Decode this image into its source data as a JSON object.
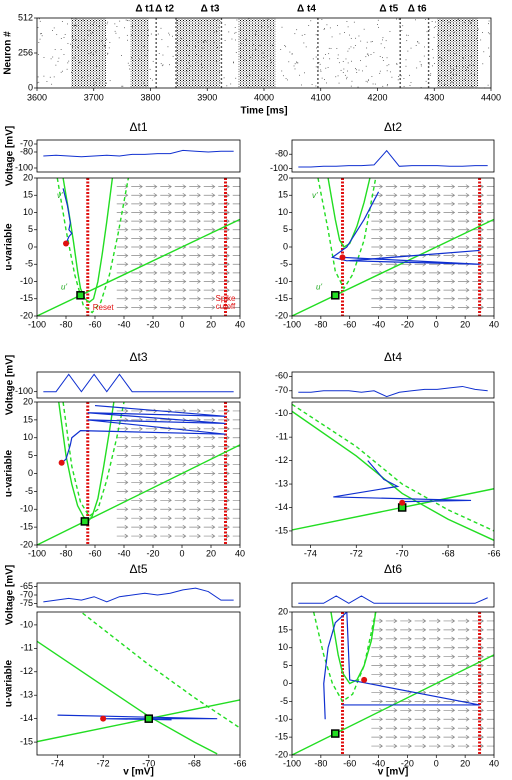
{
  "chart_data": [
    {
      "type": "raster",
      "xlabel": "Time [ms]",
      "ylabel": "Neuron #",
      "xlim": [
        3600,
        4400
      ],
      "xticks": [
        3600,
        3700,
        3800,
        3900,
        4000,
        4100,
        4200,
        4300,
        4400
      ],
      "ylim": [
        0,
        512
      ],
      "yticks": [
        0,
        256,
        512
      ],
      "bursts": [
        [
          3660,
          3722
        ],
        [
          3765,
          3797
        ],
        [
          3845,
          3922
        ],
        [
          3955,
          4020
        ],
        [
          4305,
          4378
        ]
      ],
      "events": [
        3810,
        3845,
        3925,
        4095,
        4240,
        4290
      ],
      "event_labels": [
        "Δ t1",
        "Δ t2",
        "Δ t3",
        "Δ t4",
        "Δ t5",
        "Δ t6"
      ]
    },
    {
      "type": "phase",
      "title": "Δt1",
      "voltage": {
        "label": "Voltage [mV]",
        "ylim": [
          -105,
          -65
        ],
        "yticks": [
          -100,
          -80,
          -70
        ],
        "values": [
          -85,
          -84,
          -85,
          -86,
          -85,
          -84,
          -85,
          -83,
          -83,
          -82,
          -82,
          -78,
          -79,
          -80,
          -79,
          -79
        ]
      },
      "ylabel": "u-variable",
      "xlim": [
        -100,
        40
      ],
      "xticks": [
        -100,
        -80,
        -60,
        -40,
        -20,
        0,
        20,
        40
      ],
      "ylim": [
        -20,
        20
      ],
      "yticks": [
        -20,
        -15,
        -10,
        -5,
        0,
        5,
        10,
        15,
        20
      ],
      "reset": -65,
      "cutoff": 30,
      "reset_label": "Reset",
      "cutoff_label": [
        "Spike",
        "cutoff"
      ],
      "nullcline_labels": [
        "v'",
        "u'"
      ],
      "curves": [
        {
          "color": "#22dd22",
          "dashed": false,
          "x": [
            -82,
            -78,
            -75,
            -72,
            -70,
            -67,
            -64,
            -61,
            -58,
            -55,
            -52,
            -48
          ],
          "y": [
            20,
            10,
            2,
            -7,
            -12,
            -15,
            -16,
            -15,
            -10,
            -2,
            7,
            20
          ]
        },
        {
          "color": "#22dd22",
          "dashed": true,
          "x": [
            -86,
            -80,
            -74,
            -68,
            -62,
            -56,
            -50,
            -44,
            -37
          ],
          "y": [
            20,
            5,
            -8,
            -17,
            -19,
            -16,
            -8,
            4,
            20
          ]
        },
        {
          "color": "#22dd22",
          "dashed": false,
          "x": [
            -100,
            40
          ],
          "y": [
            -20,
            8
          ]
        },
        {
          "color": "#1030d0",
          "dashed": false,
          "x": [
            -82,
            -79,
            -77,
            -78,
            -76,
            -78,
            -80
          ],
          "y": [
            17,
            12,
            7,
            5,
            4,
            3,
            1
          ]
        }
      ],
      "state": [
        -80,
        1
      ],
      "fixed_point": [
        -70,
        -14
      ]
    },
    {
      "type": "phase",
      "title": "Δt2",
      "voltage": {
        "ylim": [
          -105,
          -60
        ],
        "yticks": [
          -100,
          -80
        ],
        "values": [
          -98,
          -98,
          -97,
          -97,
          -96,
          -96,
          -95,
          -75,
          -97,
          -96,
          -96,
          -96,
          -97,
          -97,
          -96,
          -96
        ]
      },
      "xlim": [
        -100,
        40
      ],
      "xticks": [
        -100,
        -80,
        -60,
        -40,
        -20,
        0,
        20,
        40
      ],
      "ylim": [
        -20,
        20
      ],
      "yticks": [
        -20,
        -15,
        -10,
        -5,
        0,
        5,
        10,
        15,
        20
      ],
      "reset": -65,
      "cutoff": 30,
      "nullcline_labels": [
        "v'",
        "u'"
      ],
      "curves": [
        {
          "color": "#22dd22",
          "dashed": false,
          "x": [
            -75,
            -70,
            -67,
            -64,
            -60,
            -55,
            -50,
            -46
          ],
          "y": [
            20,
            8,
            2,
            0,
            1,
            6,
            13,
            20
          ]
        },
        {
          "color": "#22dd22",
          "dashed": true,
          "x": [
            -82,
            -75,
            -70,
            -64,
            -58,
            -50,
            -42
          ],
          "y": [
            20,
            5,
            -7,
            -12,
            -8,
            2,
            20
          ]
        },
        {
          "color": "#22dd22",
          "dashed": false,
          "x": [
            -100,
            40
          ],
          "y": [
            -20,
            8
          ]
        },
        {
          "color": "#1030d0",
          "dashed": false,
          "x": [
            -40,
            -50,
            -62,
            -72,
            -62,
            30,
            -60,
            30,
            -65
          ],
          "y": [
            16,
            8,
            0,
            -3,
            -4,
            -1,
            -4,
            -5,
            -3
          ]
        }
      ],
      "state": [
        -65,
        -3
      ],
      "fixed_point": [
        -70,
        -14
      ]
    },
    {
      "type": "phase",
      "title": "Δt3",
      "voltage": {
        "label": "Voltage [mV]",
        "ylim": [
          -108,
          -75
        ],
        "yticks": [
          -100
        ],
        "values": [
          -100,
          -100,
          -78,
          -100,
          -78,
          -100,
          -78,
          -100,
          -100,
          -100,
          -100,
          -100,
          -100,
          -100,
          -100,
          -100
        ]
      },
      "ylabel": "u-variable",
      "xlim": [
        -100,
        40
      ],
      "xticks": [
        -100,
        -80,
        -60,
        -40,
        -20,
        0,
        20,
        40
      ],
      "ylim": [
        -20,
        20
      ],
      "yticks": [
        -20,
        -15,
        -10,
        -5,
        0,
        5,
        10,
        15,
        20
      ],
      "reset": -65,
      "cutoff": 30,
      "curves": [
        {
          "color": "#22dd22",
          "dashed": false,
          "x": [
            -85,
            -80,
            -76,
            -72,
            -68,
            -65,
            -62,
            -58,
            -54,
            -50,
            -47
          ],
          "y": [
            20,
            5,
            -3,
            -9,
            -12,
            -13.5,
            -12,
            -7,
            2,
            12,
            20
          ]
        },
        {
          "color": "#22dd22",
          "dashed": true,
          "x": [
            -82,
            -76,
            -70,
            -64,
            -58,
            -52,
            -45,
            -40
          ],
          "y": [
            20,
            2,
            -8,
            -12,
            -10,
            -2,
            10,
            20
          ]
        },
        {
          "color": "#22dd22",
          "dashed": false,
          "x": [
            -100,
            40
          ],
          "y": [
            -20,
            8
          ]
        },
        {
          "color": "#1030d0",
          "dashed": false,
          "x": [
            -83,
            -80,
            -77,
            -76,
            -70,
            30,
            -65,
            30,
            -65,
            30,
            -60
          ],
          "y": [
            3,
            4,
            8,
            10,
            12,
            11,
            15,
            14,
            17,
            16,
            19
          ]
        }
      ],
      "state": [
        -83,
        3
      ],
      "fixed_point": [
        -67,
        -13.4
      ]
    },
    {
      "type": "phase",
      "title": "Δt4",
      "voltage": {
        "ylim": [
          -75,
          -57
        ],
        "yticks": [
          -60,
          -70
        ],
        "values": [
          -71,
          -71,
          -70,
          -70,
          -70,
          -71,
          -70,
          -74,
          -71,
          -70,
          -69,
          -69,
          -68,
          -67,
          -69,
          -70
        ]
      },
      "xlim": [
        -74.8,
        -66
      ],
      "xticks": [
        -74,
        -72,
        -70,
        -68,
        -66
      ],
      "ylim": [
        -15.6,
        -9.5
      ],
      "yticks": [
        -10,
        -11,
        -12,
        -13,
        -14,
        -15
      ],
      "curves": [
        {
          "color": "#22dd22",
          "dashed": false,
          "x": [
            -74.8,
            -72,
            -70,
            -68,
            -66
          ],
          "y": [
            -9.9,
            -11.8,
            -13.4,
            -14.5,
            -15.4
          ]
        },
        {
          "color": "#22dd22",
          "dashed": true,
          "x": [
            -74.8,
            -72,
            -70,
            -68,
            -66
          ],
          "y": [
            -9.6,
            -11.4,
            -13,
            -14.1,
            -15
          ]
        },
        {
          "color": "#22dd22",
          "dashed": false,
          "x": [
            -74.8,
            -66
          ],
          "y": [
            -14.96,
            -13.2
          ]
        },
        {
          "color": "#1030d0",
          "dashed": false,
          "x": [
            -71.5,
            -70.8,
            -70.2,
            -73,
            -67,
            -70
          ],
          "y": [
            -12,
            -12.8,
            -13.1,
            -13.55,
            -13.7,
            -13.75
          ]
        }
      ],
      "state": [
        -70,
        -13.8
      ],
      "fixed_point": [
        -70,
        -14
      ]
    },
    {
      "type": "phase",
      "title": "Δt5",
      "voltage": {
        "label": "Voltage [mV]",
        "ylim": [
          -77,
          -63
        ],
        "yticks": [
          -65,
          -70,
          -75
        ],
        "values": [
          -74,
          -73,
          -72,
          -73,
          -71,
          -74,
          -71,
          -70,
          -69,
          -70,
          -69,
          -67,
          -66,
          -68,
          -73,
          -73
        ]
      },
      "ylabel": "u-variable",
      "xlabel": "v [mV]",
      "xlim": [
        -74.9,
        -66
      ],
      "xticks": [
        -74,
        -72,
        -70,
        -68,
        -66
      ],
      "ylim": [
        -15.55,
        -9.45
      ],
      "yticks": [
        -10,
        -11,
        -12,
        -13,
        -14,
        -15
      ],
      "curves": [
        {
          "color": "#22dd22",
          "dashed": false,
          "x": [
            -74.9,
            -72,
            -70,
            -68,
            -67
          ],
          "y": [
            -10.7,
            -12.6,
            -13.9,
            -15,
            -15.5
          ]
        },
        {
          "color": "#22dd22",
          "dashed": true,
          "x": [
            -72.9,
            -70,
            -68,
            -66
          ],
          "y": [
            -9.5,
            -11.7,
            -13.1,
            -14.4
          ]
        },
        {
          "color": "#22dd22",
          "dashed": false,
          "x": [
            -74.9,
            -66
          ],
          "y": [
            -14.98,
            -13.2
          ]
        },
        {
          "color": "#1030d0",
          "dashed": false,
          "x": [
            -74,
            -67,
            -72,
            -69
          ],
          "y": [
            -13.85,
            -14,
            -14,
            -14.05
          ]
        }
      ],
      "state": [
        -72,
        -14
      ],
      "fixed_point": [
        -70,
        -14
      ]
    },
    {
      "type": "phase",
      "title": "Δt6",
      "voltage": {
        "ylim": [
          -90,
          40
        ],
        "yticks": [],
        "values": [
          -70,
          -70,
          -70,
          -30,
          -70,
          -30,
          -70,
          -70,
          -70,
          -70,
          -70,
          -70,
          -70,
          -70,
          -70,
          -40
        ]
      },
      "xlabel": "v [mV]",
      "xlim": [
        -100,
        40
      ],
      "xticks": [
        -100,
        -80,
        -60,
        -40,
        -20,
        0,
        20,
        40
      ],
      "ylim": [
        -20,
        20
      ],
      "yticks": [
        -20,
        -15,
        -10,
        -5,
        0,
        5,
        10,
        15,
        20
      ],
      "reset": -65,
      "cutoff": 30,
      "curves": [
        {
          "color": "#22dd22",
          "dashed": false,
          "x": [
            -73,
            -68,
            -65,
            -60,
            -55,
            -50,
            -45,
            -42
          ],
          "y": [
            20,
            8,
            3,
            0,
            1,
            5,
            12,
            20
          ]
        },
        {
          "color": "#22dd22",
          "dashed": true,
          "x": [
            -85,
            -78,
            -72,
            -65,
            -58,
            -50,
            -42
          ],
          "y": [
            20,
            8,
            0,
            -5,
            -3,
            5,
            20
          ]
        },
        {
          "color": "#22dd22",
          "dashed": false,
          "x": [
            -100,
            40
          ],
          "y": [
            -20,
            8
          ]
        },
        {
          "color": "#1030d0",
          "dashed": false,
          "x": [
            -77,
            -78,
            -75,
            -70,
            -62,
            -60,
            30,
            -65,
            25
          ],
          "y": [
            -10,
            0,
            10,
            17,
            20,
            1,
            -6,
            -6,
            -6
          ]
        }
      ],
      "state": [
        -50,
        1
      ],
      "fixed_point": [
        -70,
        -14
      ]
    }
  ]
}
